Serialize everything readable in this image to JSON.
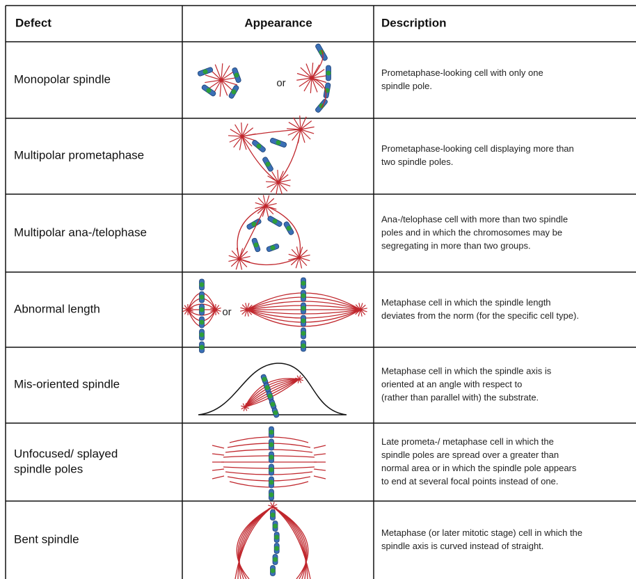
{
  "table": {
    "header": [
      "Defect",
      "Appearance",
      "Description"
    ],
    "rows": [
      {
        "defect": [
          "Monopolar spindle"
        ],
        "appearance": "or",
        "description": [
          "Prometaphase-looking cell with only one",
          "spindle pole."
        ]
      },
      {
        "defect": [
          "Multipolar prometaphase"
        ],
        "description": [
          "Prometaphase-looking cell displaying more than",
          "two spindle poles."
        ]
      },
      {
        "defect": [
          "Multipolar ana-/telophase"
        ],
        "description": [
          "Ana-/telophase cell with more than two spindle",
          "poles and in which the chromosomes may be",
          "segregating in more than two groups."
        ]
      },
      {
        "defect": [
          "Abnormal length"
        ],
        "appearance": "or",
        "description": [
          "Metaphase cell in which the spindle length",
          "deviates from the norm (for the specific cell type)."
        ]
      },
      {
        "defect": [
          "Mis-oriented spindle"
        ],
        "description": [
          "Metaphase cell in which the spindle axis is",
          "oriented at an angle with respect to",
          "(rather than parallel with) the substrate."
        ]
      },
      {
        "defect": [
          "Unfocused/ splayed",
          "spindle poles"
        ],
        "description": [
          "Late prometa-/ metaphase cell in which the",
          "spindle poles are spread over a greater than",
          "normal area or in which the spindle pole appears",
          "to end at several focal points instead of one."
        ]
      },
      {
        "defect": [
          "Bent spindle"
        ],
        "description": [
          "Metaphase (or later mitotic stage) cell in which the",
          "spindle axis is curved instead of straight."
        ]
      }
    ]
  }
}
